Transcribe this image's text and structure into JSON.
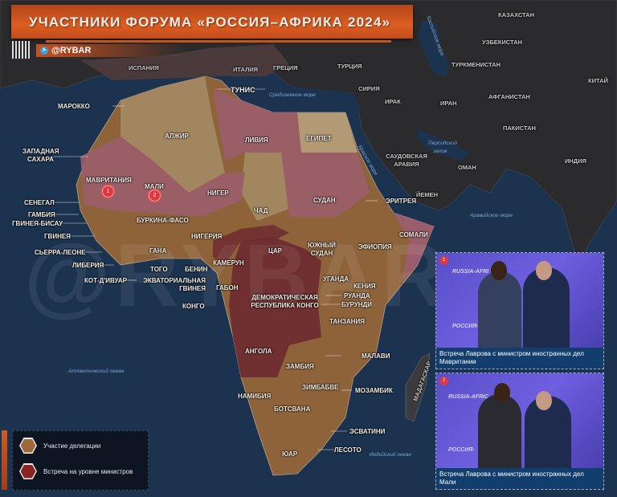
{
  "header": {
    "title": "УЧАСТНИКИ ФОРУМА «РОССИЯ–АФРИКА 2024»",
    "channel": "@RYBAR",
    "channel_icon": "telegram-icon"
  },
  "watermark": "@RYBAR",
  "colors": {
    "delegation": "#9b6a3a",
    "ministers": "#7a2a2e",
    "accent": "#dd5e22",
    "sea": "#1c3350",
    "land_other": "#2c2c2e"
  },
  "seas": {
    "mediterranean": "Средиземное море",
    "red": "Красное море",
    "persian": "Персидский залив",
    "arabian": "Аравийское море",
    "atlantic": "Атлантический океан",
    "indian": "Индийский океан",
    "caspian": "Каспийское море"
  },
  "other_countries": {
    "spain": "ИСПАНИЯ",
    "italy": "ИТАЛИЯ",
    "greece": "ГРЕЦИЯ",
    "turkey": "ТУРЦИЯ",
    "syria": "СИРИЯ",
    "iraq": "ИРАК",
    "iran": "ИРАН",
    "saudi": "САУДОВСКАЯ АРАВИЯ",
    "oman": "ОМАН",
    "yemen": "ЙЕМЕН",
    "kazakhstan": "КАЗАХСТАН",
    "uzbekistan": "УЗБЕКИСТАН",
    "turkmenistan": "ТУРКМЕНИСТАН",
    "afghanistan": "АФГАНИСТАН",
    "pakistan": "ПАКИСТАН",
    "china": "КИТАЙ",
    "india": "ИНДИЯ",
    "madagascar": "МАДАГАСКАР"
  },
  "countries": {
    "tunisia": "ТУНИС",
    "morocco": "МАРОККО",
    "algeria": "АЛЖИР",
    "libya": "ЛИВИЯ",
    "egypt": "ЕГИПЕТ",
    "western_sahara": "ЗАПАДНАЯ САХАРА",
    "mauritania": "МАВРИТАНИЯ",
    "mali": "МАЛИ",
    "niger": "НИГЕР",
    "chad": "ЧАД",
    "sudan": "СУДАН",
    "eritrea": "ЭРИТРЕЯ",
    "senegal": "СЕНЕГАЛ",
    "gambia": "ГАМБИЯ",
    "guinea_bissau": "ГВИНЕЯ-БИСАУ",
    "guinea": "ГВИНЕЯ",
    "sierra_leone": "СЬЕРРА-ЛЕОНЕ",
    "liberia": "ЛИБЕРИЯ",
    "cote_divoire": "КОТ-Д'ИВУАР",
    "burkina_faso": "БУРКИНА-ФАСО",
    "ghana": "ГАНА",
    "togo": "ТОГО",
    "benin": "БЕНИН",
    "nigeria": "НИГЕРИЯ",
    "cameroon": "КАМЕРУН",
    "car": "ЦАР",
    "south_sudan": "ЮЖНЫЙ СУДАН",
    "ethiopia": "ЭФИОПИЯ",
    "somalia": "СОМАЛИ",
    "eq_guinea": "ЭКВАТОРИАЛЬНАЯ ГВИНЕЯ",
    "gabon": "ГАБОН",
    "congo": "КОНГО",
    "drc": "ДЕМОКРАТИЧЕСКАЯ РЕСПУБЛИКА КОНГО",
    "uganda": "УГАНДА",
    "kenya": "КЕНИЯ",
    "rwanda": "РУАНДА",
    "burundi": "БУРУНДИ",
    "tanzania": "ТАНЗАНИЯ",
    "angola": "АНГОЛА",
    "zambia": "ЗАМБИЯ",
    "malawi": "МАЛАВИ",
    "zimbabwe": "ЗИМБАБВЕ",
    "mozambique": "МОЗАМБИК",
    "namibia": "НАМИБИЯ",
    "botswana": "БОТСВАНА",
    "eswatini": "ЭСВАТИНИ",
    "lesotho": "ЛЕСОТО",
    "south_africa": "ЮАР"
  },
  "markers": [
    "1",
    "2"
  ],
  "legend": [
    {
      "label": "Участие делегации",
      "color": "#9b6a3a"
    },
    {
      "label": "Встреча на уровне министров",
      "color": "#7a2a2e"
    }
  ],
  "photos": [
    {
      "number": "1",
      "caption": "Встреча Лаврова с министром иностранных дел Мавритании",
      "brand_top": "RUSSIA-AFRI",
      "brand_bottom": "РОССИЯ-А"
    },
    {
      "number": "2",
      "caption": "Встреча Лаврова с министром иностранных дел Мали",
      "brand_top": "RUSSIA-AFRIC",
      "brand_bottom": "РОССИЯ-"
    }
  ]
}
